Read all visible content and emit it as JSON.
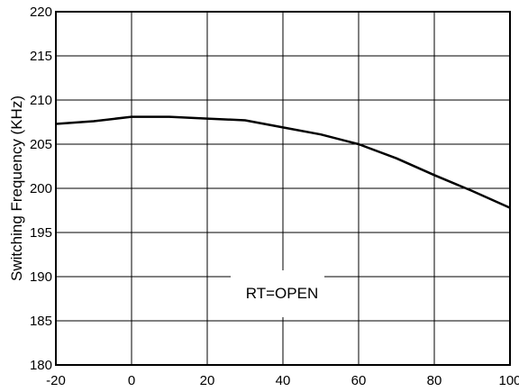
{
  "chart_data": {
    "type": "line",
    "title": "",
    "xlabel": "",
    "ylabel": "Switching Frequency (KHz)",
    "xlim": [
      -20,
      100
    ],
    "ylim": [
      180,
      220
    ],
    "xticks": [
      "-20",
      "0",
      "20",
      "40",
      "60",
      "80",
      "100"
    ],
    "yticks": [
      "220",
      "215",
      "210",
      "205",
      "200",
      "195",
      "190",
      "185",
      "180"
    ],
    "grid": true,
    "annotation": "RT=OPEN",
    "series": [
      {
        "x": [
          -20,
          -10,
          0,
          10,
          20,
          30,
          40,
          50,
          60,
          70,
          80,
          90,
          100
        ],
        "values": [
          207.3,
          207.6,
          208.1,
          208.1,
          207.9,
          207.7,
          206.9,
          206.1,
          205.0,
          203.4,
          201.5,
          199.7,
          197.8
        ]
      }
    ],
    "colors": {
      "line": "#000000",
      "grid": "#000000",
      "background": "#ffffff"
    }
  }
}
